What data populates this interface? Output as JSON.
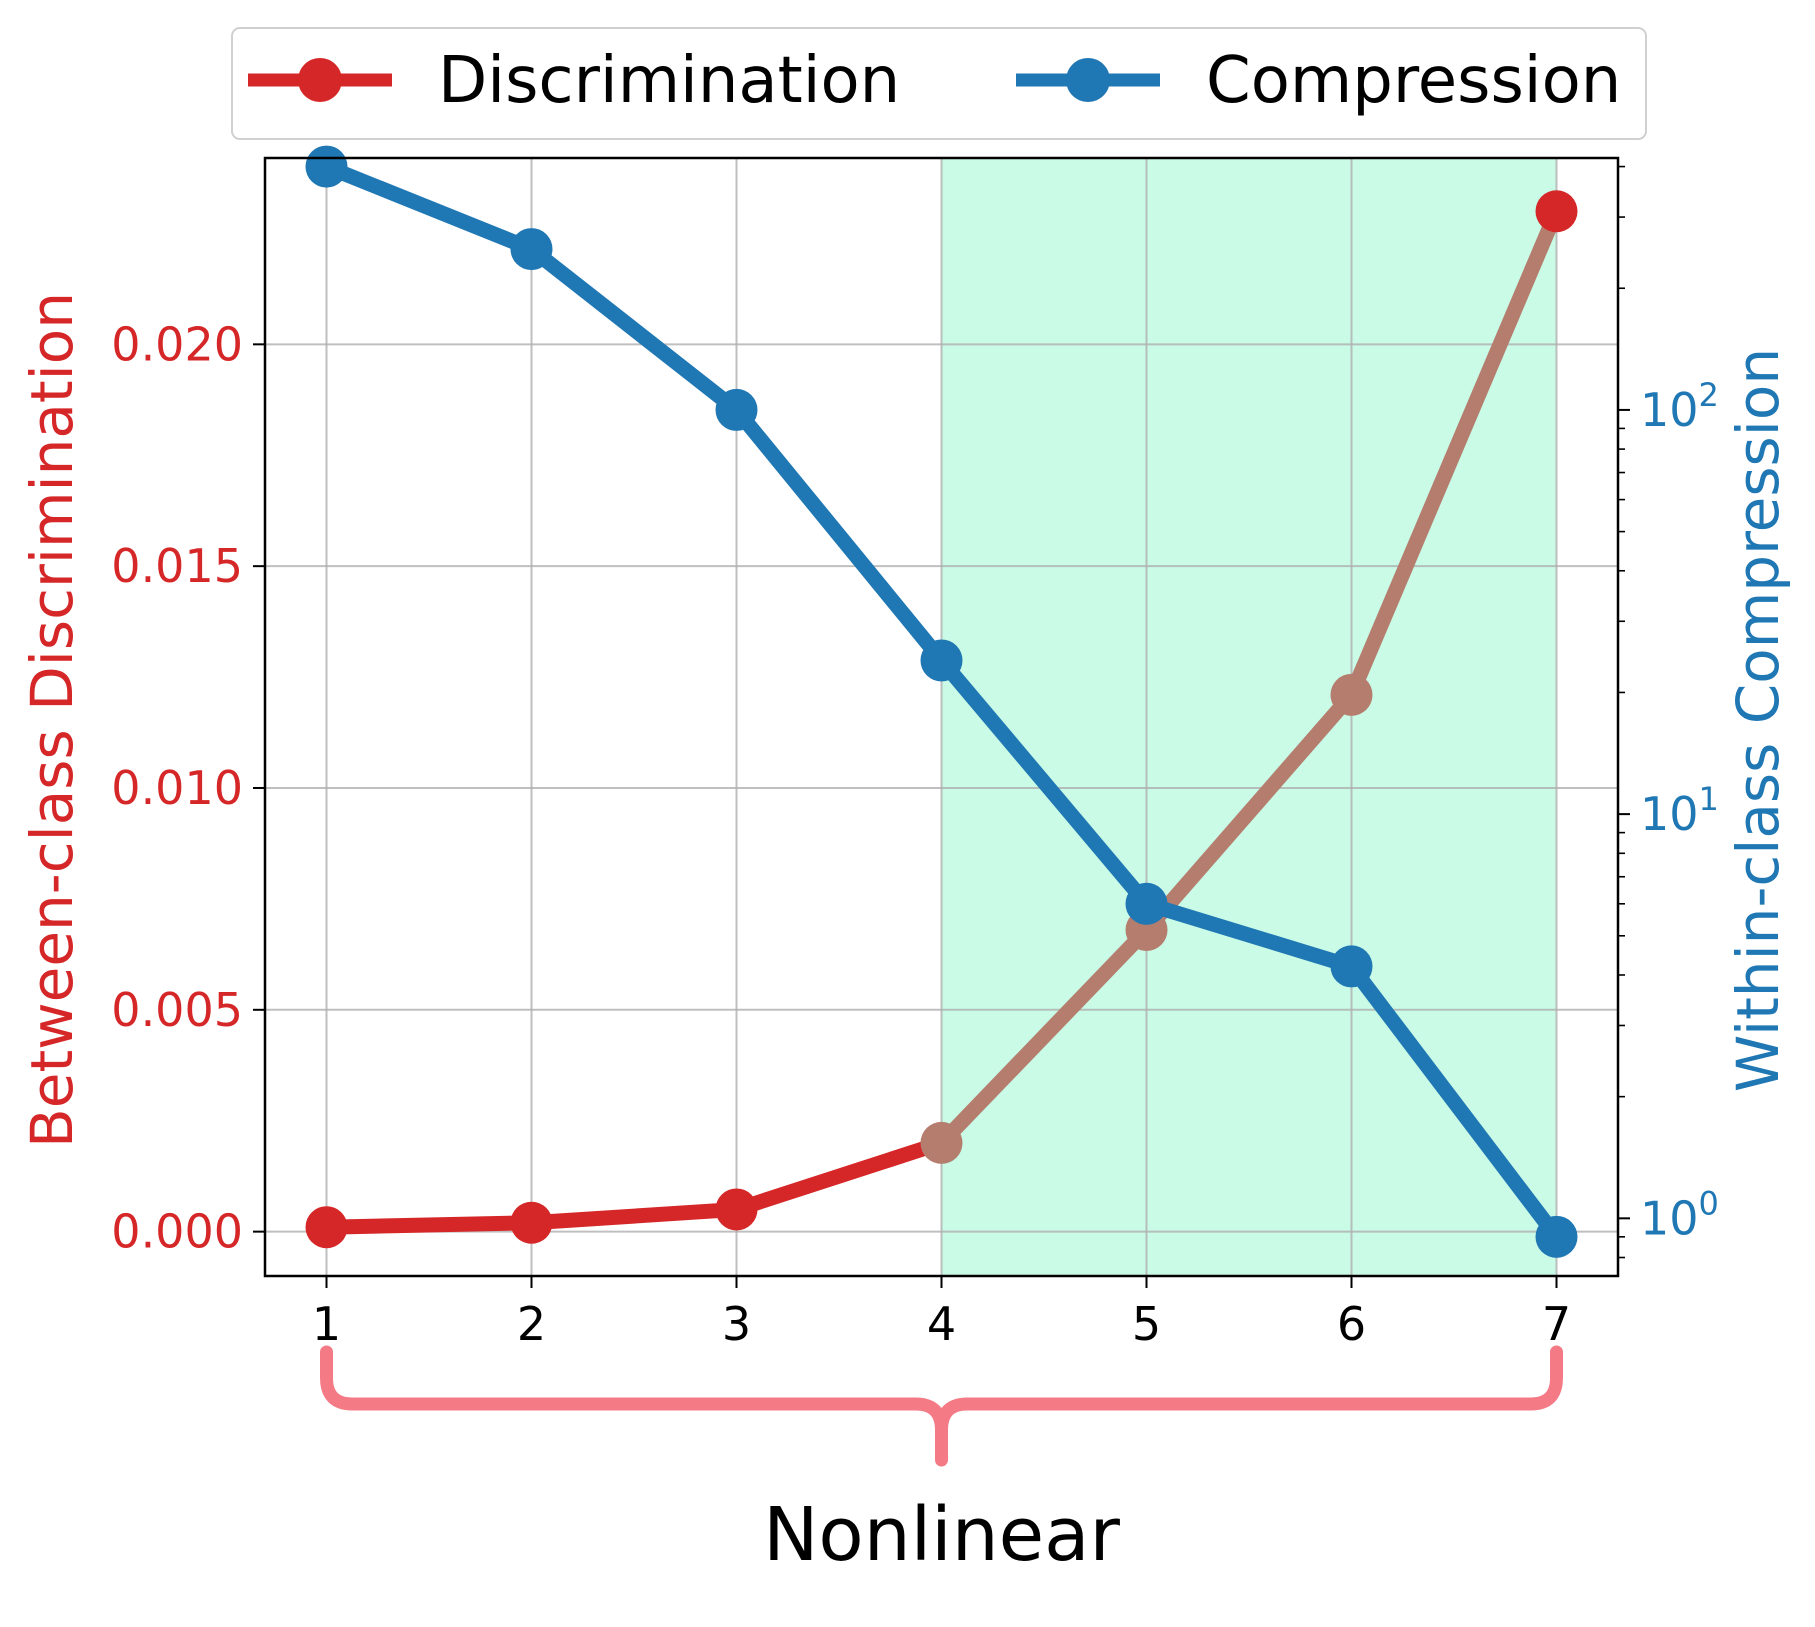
{
  "chart_data": {
    "type": "line",
    "x": [
      1,
      2,
      3,
      4,
      5,
      6,
      7
    ],
    "x_ticks": [
      "1",
      "2",
      "3",
      "4",
      "5",
      "6",
      "7"
    ],
    "xlim": [
      0.7,
      7.3
    ],
    "grid": true,
    "legend_position": "top-center, above plot",
    "y_left": {
      "label": "Between-class Discrimination",
      "color": "#d62728",
      "scale": "linear",
      "ylim": [
        -0.001,
        0.0242
      ],
      "ticks": [
        0.0,
        0.005,
        0.01,
        0.015,
        0.02
      ],
      "tick_labels": [
        "0.000",
        "0.005",
        "0.010",
        "0.015",
        "0.020"
      ]
    },
    "y_right": {
      "label": "Within-class Compression",
      "color": "#1f77b4",
      "scale": "log",
      "ylim": [
        0.72,
        420
      ],
      "ticks": [
        1,
        10,
        100
      ],
      "tick_labels": [
        "10",
        "10",
        "10"
      ],
      "tick_exponents": [
        "0",
        "1",
        "2"
      ]
    },
    "series": [
      {
        "name": "Discrimination",
        "axis": "left",
        "color": "#d62728",
        "highlight_color": "#b57d6e",
        "values": [
          0.0001,
          0.0002,
          0.0005,
          0.002,
          0.0068,
          0.0121,
          0.023
        ]
      },
      {
        "name": "Compression",
        "axis": "right",
        "color": "#1f77b4",
        "values": [
          400,
          250,
          100,
          24,
          6,
          4.2,
          0.9
        ]
      }
    ],
    "shaded_region": {
      "x_range": [
        4,
        7
      ],
      "color": "#c9fbe6"
    },
    "bracket": {
      "x_range": [
        1,
        7
      ],
      "label": "Nonlinear",
      "color": "#f47a86"
    }
  }
}
